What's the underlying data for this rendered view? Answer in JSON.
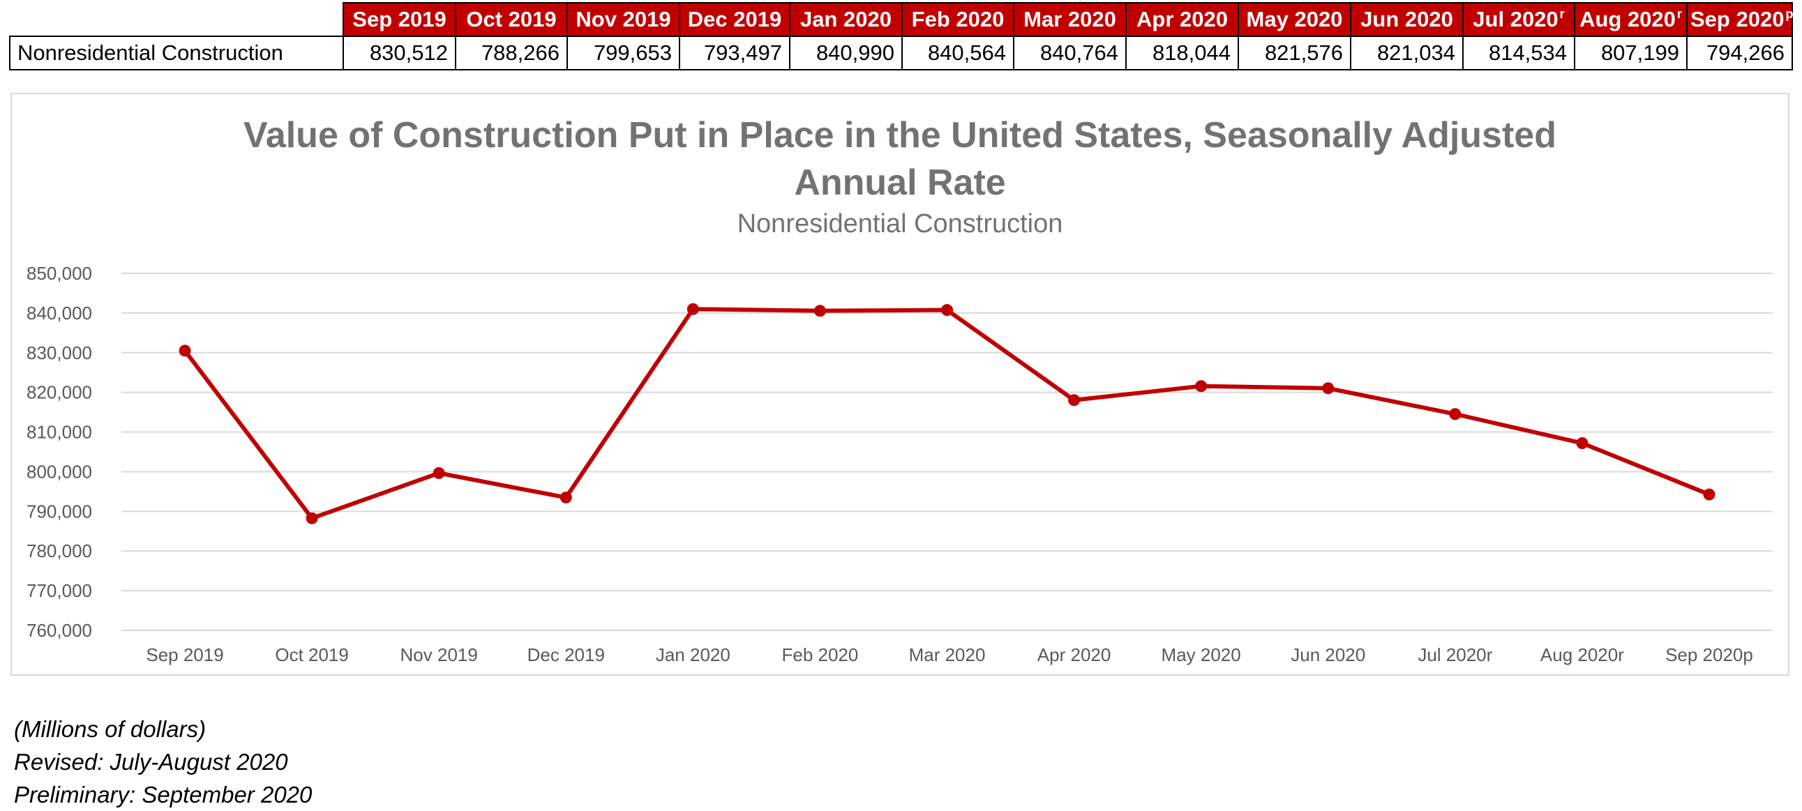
{
  "table": {
    "columns": [
      {
        "label": "Sep 2019",
        "sup": ""
      },
      {
        "label": "Oct 2019",
        "sup": ""
      },
      {
        "label": "Nov 2019",
        "sup": ""
      },
      {
        "label": "Dec 2019",
        "sup": ""
      },
      {
        "label": "Jan 2020",
        "sup": ""
      },
      {
        "label": "Feb 2020",
        "sup": ""
      },
      {
        "label": "Mar 2020",
        "sup": ""
      },
      {
        "label": "Apr 2020",
        "sup": ""
      },
      {
        "label": "May 2020",
        "sup": ""
      },
      {
        "label": "Jun 2020",
        "sup": ""
      },
      {
        "label": "Jul 2020",
        "sup": "r"
      },
      {
        "label": "Aug 2020",
        "sup": "r"
      },
      {
        "label": "Sep 2020",
        "sup": "p"
      }
    ],
    "row_label": "Nonresidential Construction",
    "values": [
      "830,512",
      "788,266",
      "799,653",
      "793,497",
      "840,990",
      "840,564",
      "840,764",
      "818,044",
      "821,576",
      "821,034",
      "814,534",
      "807,199",
      "794,266"
    ]
  },
  "chart_data": {
    "type": "line",
    "title": "Value of Construction Put in Place in the United States, Seasonally Adjusted Annual Rate",
    "subtitle": "Nonresidential Construction",
    "categories": [
      "Sep 2019",
      "Oct 2019",
      "Nov 2019",
      "Dec 2019",
      "Jan 2020",
      "Feb 2020",
      "Mar 2020",
      "Apr 2020",
      "May 2020",
      "Jun 2020",
      "Jul 2020r",
      "Aug 2020r",
      "Sep 2020p"
    ],
    "series": [
      {
        "values": [
          830512,
          788266,
          799653,
          793497,
          840990,
          840564,
          840764,
          818044,
          821576,
          821034,
          814534,
          807199,
          794266
        ]
      }
    ],
    "ylim": [
      760000,
      850000
    ],
    "y_ticks": [
      760000,
      770000,
      780000,
      790000,
      800000,
      810000,
      820000,
      830000,
      840000,
      850000
    ],
    "y_tick_labels": [
      "760,000",
      "770,000",
      "780,000",
      "790,000",
      "800,000",
      "810,000",
      "820,000",
      "830,000",
      "840,000",
      "850,000"
    ],
    "grid": true,
    "legend": "none",
    "line_color": "#c00000",
    "grid_color": "#d9d9d9",
    "text_color": "#595959"
  },
  "notes": [
    "(Millions of dollars)",
    "Revised: July-August 2020",
    "Preliminary: September 2020"
  ]
}
